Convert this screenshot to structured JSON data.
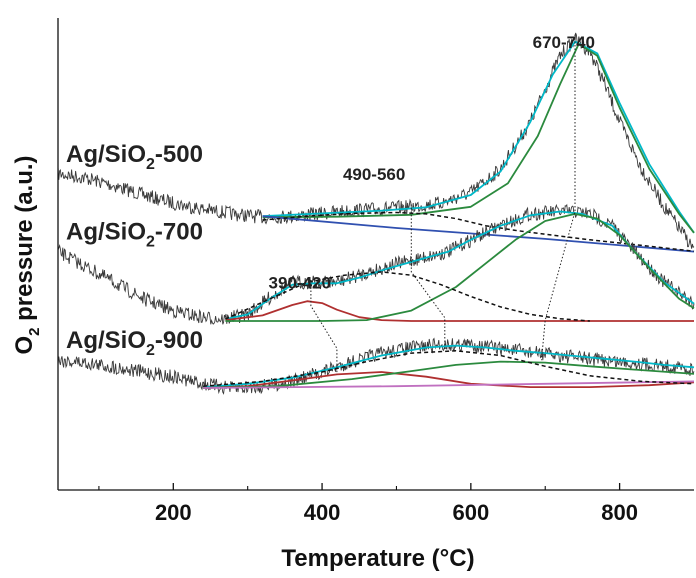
{
  "chart_data": {
    "type": "line",
    "xlabel": "Temperature (°C)",
    "ylabel": "O2 pressure (a.u.)",
    "ylabel_parts": {
      "pre": "O",
      "sub": "2",
      "post": " pressure (a.u.)"
    },
    "xlim": [
      45,
      900
    ],
    "ylim": [
      0,
      10
    ],
    "x_ticks": [
      200,
      400,
      600,
      800
    ],
    "x_tick_labels": [
      "200",
      "400",
      "600",
      "800"
    ],
    "x_minor_ticks": [
      100,
      300,
      500,
      700
    ],
    "y_ticks": [],
    "grid": false,
    "legend": "none",
    "samples": [
      {
        "label": "Ag/SiO2-500",
        "label_parts": {
          "pre": "Ag/SiO",
          "sub": "2",
          "post": "-500"
        },
        "raw_x": [
          45,
          80,
          120,
          160,
          200,
          240,
          280,
          320,
          360,
          400,
          440,
          480,
          520,
          560,
          600,
          640,
          680,
          700,
          720,
          740,
          760,
          780,
          800,
          830,
          860,
          900
        ],
        "raw_y": [
          6.7,
          6.62,
          6.45,
          6.25,
          6.08,
          5.95,
          5.85,
          5.78,
          5.8,
          5.86,
          5.92,
          5.96,
          6.0,
          6.08,
          6.3,
          6.8,
          7.8,
          8.5,
          9.2,
          9.55,
          9.3,
          8.6,
          7.8,
          6.8,
          6.0,
          5.1
        ],
        "fits": [
          {
            "color": "#00b8c8",
            "x": [
              320,
              400,
              480,
              540,
              600,
              640,
              680,
              710,
              740,
              770,
              800,
              840,
              880,
              900
            ],
            "y": [
              5.8,
              5.86,
              5.92,
              5.99,
              6.25,
              6.75,
              7.8,
              8.8,
              9.5,
              9.25,
              8.2,
              6.9,
              5.9,
              5.45
            ]
          },
          {
            "color": "#2b8a3e",
            "x": [
              320,
              420,
              520,
              600,
              650,
              690,
              720,
              745,
              770,
              800,
              840,
              880,
              900
            ],
            "y": [
              5.78,
              5.79,
              5.83,
              6.0,
              6.5,
              7.5,
              8.6,
              9.45,
              9.2,
              8.1,
              6.8,
              5.85,
              5.45
            ]
          },
          {
            "color": "#3050b0",
            "x": [
              320,
              500,
              700,
              900
            ],
            "y": [
              5.8,
              5.55,
              5.32,
              5.05
            ]
          },
          {
            "color": "#111111",
            "dash": true,
            "x": [
              320,
              380,
              440,
              500,
              540,
              580,
              620,
              660,
              700,
              760,
              820,
              900
            ],
            "y": [
              5.72,
              5.8,
              5.86,
              5.88,
              5.85,
              5.75,
              5.6,
              5.5,
              5.42,
              5.3,
              5.2,
              5.06
            ]
          }
        ]
      },
      {
        "label": "Ag/SiO2-700",
        "label_parts": {
          "pre": "Ag/SiO",
          "sub": "2",
          "post": "-700"
        },
        "raw_x": [
          45,
          80,
          120,
          160,
          200,
          240,
          270,
          300,
          330,
          360,
          390,
          420,
          450,
          490,
          530,
          570,
          600,
          640,
          680,
          720,
          740,
          760,
          790,
          820,
          860,
          900
        ],
        "raw_y": [
          5.05,
          4.75,
          4.4,
          4.05,
          3.8,
          3.65,
          3.62,
          3.72,
          4.08,
          4.4,
          4.4,
          4.4,
          4.55,
          4.75,
          4.9,
          5.05,
          5.3,
          5.6,
          5.85,
          5.9,
          5.9,
          5.85,
          5.6,
          5.05,
          4.4,
          3.95
        ],
        "fits": [
          {
            "color": "#00b8c8",
            "x": [
              270,
              300,
              330,
              360,
              390,
              420,
              450,
              490,
              530,
              570,
              600,
              640,
              680,
              720,
              750,
              790,
              820,
              860,
              900
            ],
            "y": [
              3.62,
              3.72,
              4.05,
              4.35,
              4.38,
              4.38,
              4.5,
              4.7,
              4.88,
              5.05,
              5.3,
              5.6,
              5.82,
              5.9,
              5.85,
              5.6,
              5.05,
              4.4,
              3.95
            ]
          },
          {
            "color": "#b03030",
            "x": [
              270,
              320,
              360,
              380,
              400,
              420,
              450,
              480,
              520,
              600,
              700,
              800,
              900
            ],
            "y": [
              3.6,
              3.7,
              3.92,
              4.0,
              3.96,
              3.82,
              3.66,
              3.6,
              3.58,
              3.58,
              3.58,
              3.58,
              3.58
            ]
          },
          {
            "color": "#2b8a3e",
            "x": [
              270,
              400,
              460,
              520,
              580,
              620,
              660,
              700,
              740,
              770,
              800,
              840,
              880,
              900
            ],
            "y": [
              3.58,
              3.58,
              3.6,
              3.8,
              4.3,
              4.8,
              5.3,
              5.7,
              5.85,
              5.75,
              5.4,
              4.7,
              4.05,
              3.85
            ]
          },
          {
            "color": "#111111",
            "dash": true,
            "x": [
              270,
              330,
              380,
              430,
              480,
              520,
              560,
              600,
              640,
              680,
              720,
              760
            ],
            "y": [
              3.62,
              4.05,
              4.4,
              4.55,
              4.62,
              4.55,
              4.35,
              4.1,
              3.88,
              3.72,
              3.63,
              3.58
            ]
          }
        ]
      },
      {
        "label": "Ag/SiO2-900",
        "label_parts": {
          "pre": "Ag/SiO",
          "sub": "2",
          "post": "-900"
        },
        "raw_x": [
          45,
          80,
          120,
          160,
          200,
          240,
          280,
          320,
          360,
          400,
          440,
          480,
          520,
          560,
          600,
          640,
          680,
          720,
          760,
          800,
          840,
          880,
          900
        ],
        "raw_y": [
          2.75,
          2.7,
          2.6,
          2.5,
          2.4,
          2.25,
          2.15,
          2.2,
          2.3,
          2.5,
          2.72,
          2.9,
          3.02,
          3.08,
          3.08,
          3.0,
          2.92,
          2.85,
          2.78,
          2.72,
          2.66,
          2.6,
          2.55
        ],
        "fits": [
          {
            "color": "#00b8c8",
            "x": [
              240,
              300,
              360,
              420,
              480,
              540,
              580,
              620,
              660,
              700,
              740,
              780,
              820,
              860,
              900
            ],
            "y": [
              2.18,
              2.25,
              2.38,
              2.6,
              2.85,
              3.02,
              3.06,
              3.02,
              2.95,
              2.9,
              2.84,
              2.78,
              2.72,
              2.65,
              2.6
            ]
          },
          {
            "color": "#b03030",
            "x": [
              240,
              300,
              360,
              420,
              480,
              540,
              600,
              680,
              760,
              840,
              900
            ],
            "y": [
              2.16,
              2.2,
              2.32,
              2.45,
              2.5,
              2.4,
              2.25,
              2.18,
              2.18,
              2.22,
              2.28
            ]
          },
          {
            "color": "#2b8a3e",
            "x": [
              240,
              340,
              440,
              520,
              580,
              640,
              700,
              760,
              820,
              900
            ],
            "y": [
              2.16,
              2.2,
              2.35,
              2.52,
              2.65,
              2.72,
              2.7,
              2.62,
              2.55,
              2.46
            ]
          },
          {
            "color": "#c070c0",
            "x": [
              240,
              500,
              700,
              900
            ],
            "y": [
              2.16,
              2.2,
              2.25,
              2.3
            ]
          },
          {
            "color": "#111111",
            "dash": true,
            "x": [
              240,
              320,
              400,
              460,
              520,
              580,
              640,
              700,
              760,
              830,
              900
            ],
            "y": [
              2.2,
              2.3,
              2.5,
              2.72,
              2.9,
              2.95,
              2.85,
              2.62,
              2.42,
              2.3,
              2.25
            ]
          }
        ]
      }
    ],
    "peak_labels": [
      {
        "text": "670-740",
        "x": 725,
        "y": 10.0
      },
      {
        "text": "490-560",
        "x": 470,
        "y": 7.2
      },
      {
        "text": "390-420",
        "x": 370,
        "y": 4.9
      }
    ],
    "peak_guides": [
      {
        "x": [
          740,
          740,
          700,
          695
        ],
        "y": [
          9.65,
          5.9,
          3.6,
          2.75
        ]
      },
      {
        "x": [
          520,
          520,
          565,
          565
        ],
        "y": [
          6.05,
          4.62,
          3.65,
          2.95
        ]
      },
      {
        "x": [
          385,
          385,
          420,
          420
        ],
        "y": [
          4.45,
          3.9,
          3.0,
          2.45
        ]
      }
    ]
  }
}
